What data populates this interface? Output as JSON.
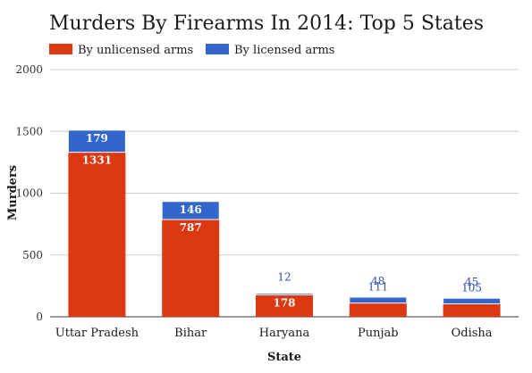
{
  "chart_data": {
    "type": "bar",
    "stacked": true,
    "title": "Murders By Firearms In 2014: Top 5 States",
    "xlabel": "State",
    "ylabel": "Murders",
    "ylim": [
      0,
      2000
    ],
    "yticks": [
      "0",
      "500",
      "1000",
      "1500",
      "2000"
    ],
    "ytick_values": [
      0,
      500,
      1000,
      1500,
      2000
    ],
    "grid": true,
    "legend_position": "top-left",
    "categories": [
      "Uttar Pradesh",
      "Bihar",
      "Haryana",
      "Punjab",
      "Odisha"
    ],
    "series": [
      {
        "name": "By unlicensed arms",
        "color": "#dc3912",
        "values": [
          1331,
          787,
          178,
          111,
          105
        ]
      },
      {
        "name": "By licensed arms",
        "color": "#3366cc",
        "values": [
          179,
          146,
          12,
          48,
          45
        ]
      }
    ]
  }
}
